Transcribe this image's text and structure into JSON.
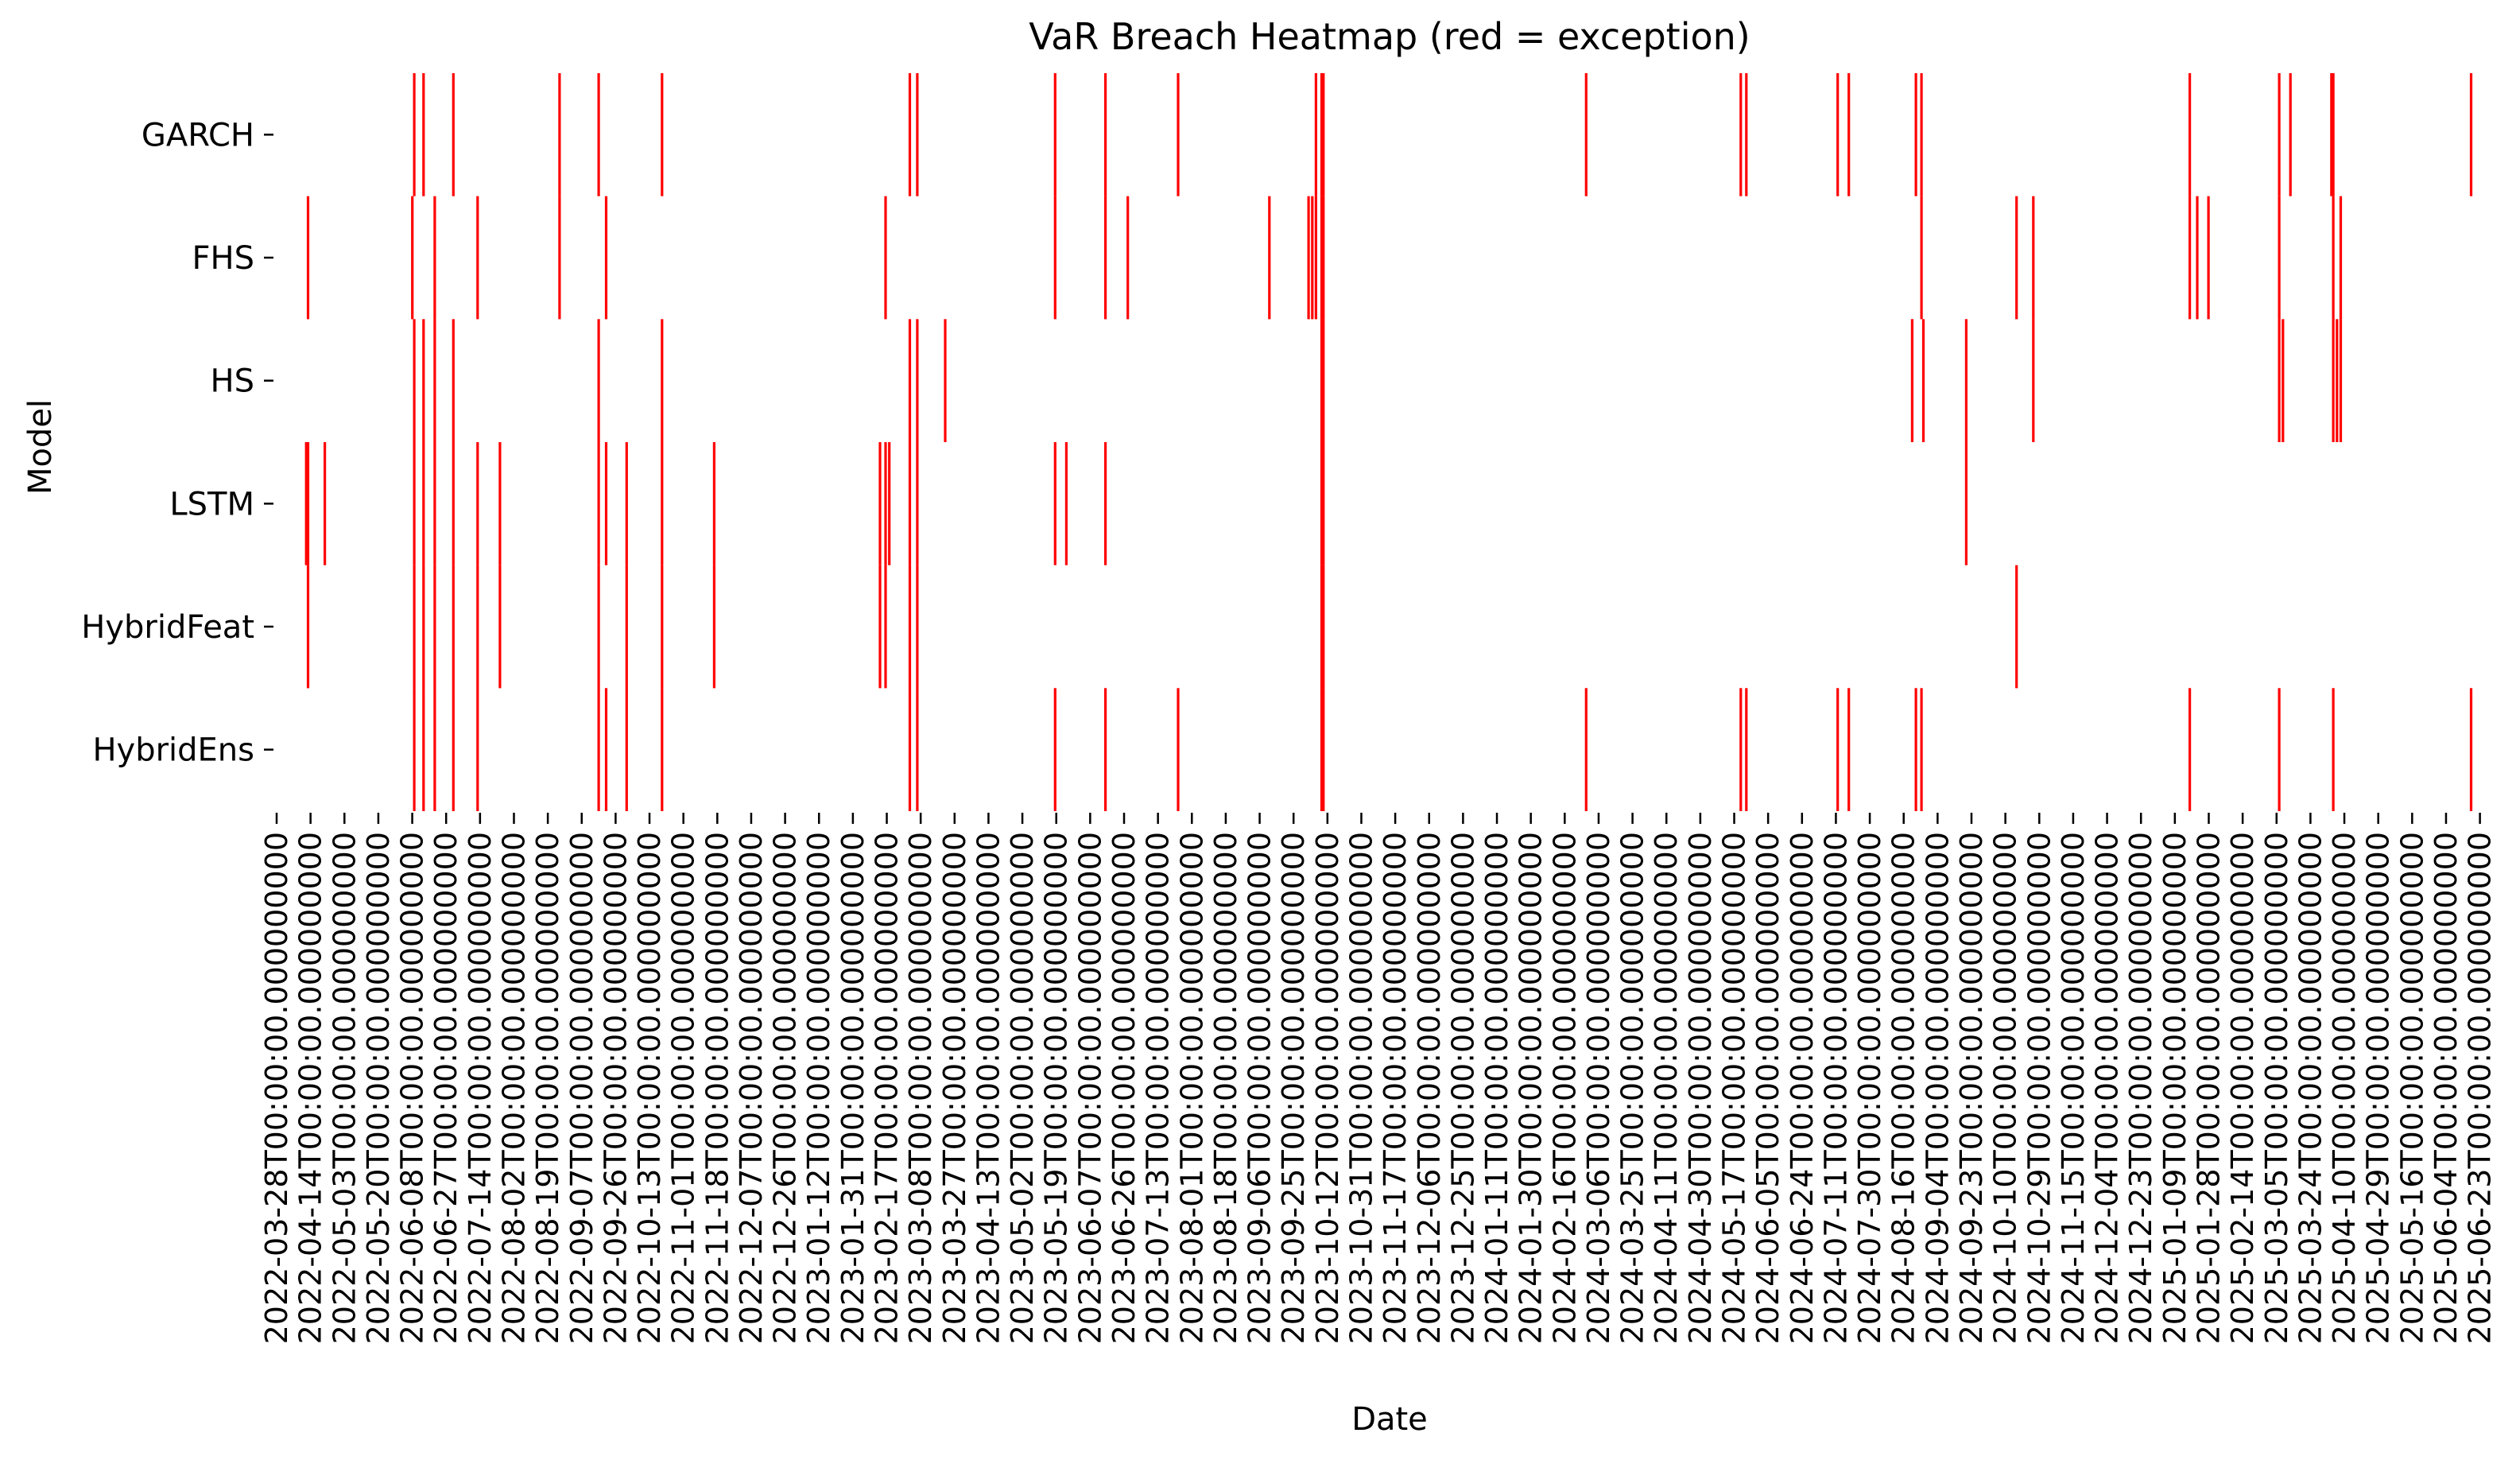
{
  "chart_data": {
    "type": "heatmap",
    "title": "VaR Breach Heatmap (red = exception)",
    "xlabel": "Date",
    "ylabel": "Model",
    "models": [
      "GARCH",
      "FHS",
      "HS",
      "LSTM",
      "HybridFeat",
      "HybridEns"
    ],
    "breach_color": "#ff0000",
    "background_color": "#ffffff",
    "x_range": [
      "2022-03-28",
      "2025-06-30"
    ],
    "x_tick_labels": [
      "2022-03-28T00:00:00.000000000",
      "2022-04-14T00:00:00.000000000",
      "2022-05-03T00:00:00.000000000",
      "2022-05-20T00:00:00.000000000",
      "2022-06-08T00:00:00.000000000",
      "2022-06-27T00:00:00.000000000",
      "2022-07-14T00:00:00.000000000",
      "2022-08-02T00:00:00.000000000",
      "2022-08-19T00:00:00.000000000",
      "2022-09-07T00:00:00.000000000",
      "2022-09-26T00:00:00.000000000",
      "2022-10-13T00:00:00.000000000",
      "2022-11-01T00:00:00.000000000",
      "2022-11-18T00:00:00.000000000",
      "2022-12-07T00:00:00.000000000",
      "2022-12-26T00:00:00.000000000",
      "2023-01-12T00:00:00.000000000",
      "2023-01-31T00:00:00.000000000",
      "2023-02-17T00:00:00.000000000",
      "2023-03-08T00:00:00.000000000",
      "2023-03-27T00:00:00.000000000",
      "2023-04-13T00:00:00.000000000",
      "2023-05-02T00:00:00.000000000",
      "2023-05-19T00:00:00.000000000",
      "2023-06-07T00:00:00.000000000",
      "2023-06-26T00:00:00.000000000",
      "2023-07-13T00:00:00.000000000",
      "2023-08-01T00:00:00.000000000",
      "2023-08-18T00:00:00.000000000",
      "2023-09-06T00:00:00.000000000",
      "2023-09-25T00:00:00.000000000",
      "2023-10-12T00:00:00.000000000",
      "2023-10-31T00:00:00.000000000",
      "2023-11-17T00:00:00.000000000",
      "2023-12-06T00:00:00.000000000",
      "2023-12-25T00:00:00.000000000",
      "2024-01-11T00:00:00.000000000",
      "2024-01-30T00:00:00.000000000",
      "2024-02-16T00:00:00.000000000",
      "2024-03-06T00:00:00.000000000",
      "2024-03-25T00:00:00.000000000",
      "2024-04-11T00:00:00.000000000",
      "2024-04-30T00:00:00.000000000",
      "2024-05-17T00:00:00.000000000",
      "2024-06-05T00:00:00.000000000",
      "2024-06-24T00:00:00.000000000",
      "2024-07-11T00:00:00.000000000",
      "2024-07-30T00:00:00.000000000",
      "2024-08-16T00:00:00.000000000",
      "2024-09-04T00:00:00.000000000",
      "2024-09-23T00:00:00.000000000",
      "2024-10-10T00:00:00.000000000",
      "2024-10-29T00:00:00.000000000",
      "2024-11-15T00:00:00.000000000",
      "2024-12-04T00:00:00.000000000",
      "2024-12-23T00:00:00.000000000",
      "2025-01-09T00:00:00.000000000",
      "2025-01-28T00:00:00.000000000",
      "2025-02-14T00:00:00.000000000",
      "2025-03-05T00:00:00.000000000",
      "2025-03-24T00:00:00.000000000",
      "2025-04-10T00:00:00.000000000",
      "2025-04-29T00:00:00.000000000",
      "2025-05-16T00:00:00.000000000",
      "2025-06-04T00:00:00.000000000",
      "2025-06-23T00:00:00.000000000"
    ],
    "breaches": [
      {
        "model": "GARCH",
        "dates": [
          "2022-06-09",
          "2022-06-14",
          "2022-06-30",
          "2022-08-26",
          "2022-09-16",
          "2022-10-20",
          "2023-03-02",
          "2023-03-06",
          "2023-05-19",
          "2023-06-15",
          "2023-07-24",
          "2023-10-06",
          "2023-10-09",
          "2023-10-10",
          "2024-02-28",
          "2024-05-21",
          "2024-05-24",
          "2024-07-12",
          "2024-07-18",
          "2024-08-23",
          "2024-08-26",
          "2025-01-17",
          "2025-03-06",
          "2025-03-12",
          "2025-04-03",
          "2025-04-04",
          "2025-06-17"
        ]
      },
      {
        "model": "FHS",
        "dates": [
          "2022-04-13",
          "2022-06-08",
          "2022-06-20",
          "2022-07-13",
          "2022-08-26",
          "2022-09-20",
          "2023-02-17",
          "2023-05-19",
          "2023-06-15",
          "2023-06-27",
          "2023-09-11",
          "2023-10-02",
          "2023-10-04",
          "2023-10-06",
          "2023-10-09",
          "2023-10-10",
          "2024-08-26",
          "2024-10-16",
          "2024-10-25",
          "2025-01-17",
          "2025-01-21",
          "2025-01-27",
          "2025-03-06",
          "2025-04-04",
          "2025-04-08"
        ]
      },
      {
        "model": "HS",
        "dates": [
          "2022-06-09",
          "2022-06-14",
          "2022-06-20",
          "2022-06-30",
          "2022-09-16",
          "2022-10-20",
          "2023-03-02",
          "2023-03-06",
          "2023-03-21",
          "2023-10-09",
          "2023-10-10",
          "2024-08-21",
          "2024-08-27",
          "2024-09-19",
          "2024-10-25",
          "2025-03-06",
          "2025-03-08",
          "2025-04-04",
          "2025-04-06",
          "2025-04-08"
        ]
      },
      {
        "model": "LSTM",
        "dates": [
          "2022-04-12",
          "2022-04-13",
          "2022-04-22",
          "2022-06-09",
          "2022-06-14",
          "2022-06-20",
          "2022-06-30",
          "2022-07-13",
          "2022-07-25",
          "2022-09-16",
          "2022-09-20",
          "2022-10-01",
          "2022-10-20",
          "2022-11-17",
          "2023-02-14",
          "2023-02-17",
          "2023-02-19",
          "2023-03-02",
          "2023-03-06",
          "2023-05-19",
          "2023-05-25",
          "2023-06-15",
          "2023-10-09",
          "2023-10-10",
          "2024-09-19"
        ]
      },
      {
        "model": "HybridFeat",
        "dates": [
          "2022-04-13",
          "2022-06-09",
          "2022-06-14",
          "2022-06-20",
          "2022-06-30",
          "2022-07-13",
          "2022-07-25",
          "2022-09-16",
          "2022-10-01",
          "2022-10-20",
          "2022-11-17",
          "2023-02-14",
          "2023-02-17",
          "2023-03-02",
          "2023-03-06",
          "2023-10-09",
          "2023-10-10",
          "2024-10-16"
        ]
      },
      {
        "model": "HybridEns",
        "dates": [
          "2022-06-09",
          "2022-06-14",
          "2022-06-20",
          "2022-06-30",
          "2022-07-13",
          "2022-09-16",
          "2022-09-20",
          "2022-10-01",
          "2022-10-20",
          "2023-03-02",
          "2023-03-06",
          "2023-05-19",
          "2023-06-15",
          "2023-07-24",
          "2023-10-09",
          "2023-10-10",
          "2024-02-28",
          "2024-05-21",
          "2024-05-24",
          "2024-07-12",
          "2024-07-18",
          "2024-08-23",
          "2024-08-26",
          "2025-01-17",
          "2025-03-06",
          "2025-04-04",
          "2025-06-17"
        ]
      }
    ],
    "grid": false,
    "legend": "none"
  }
}
